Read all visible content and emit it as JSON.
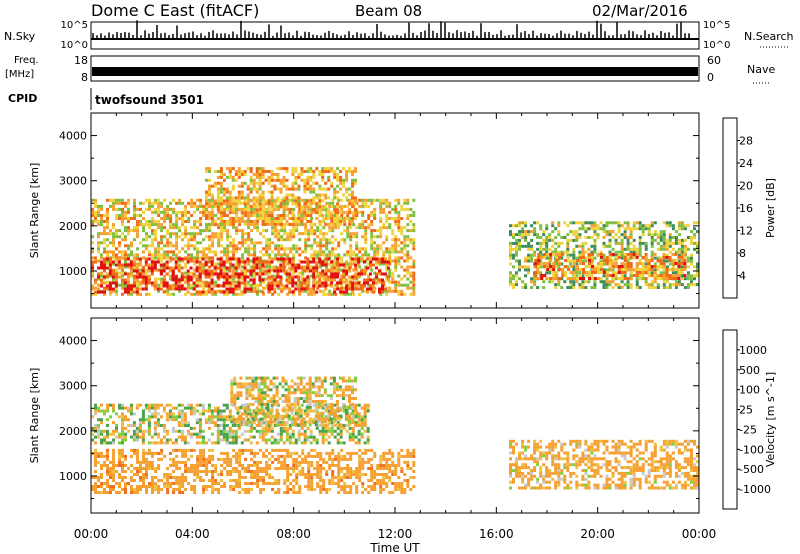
{
  "header": {
    "station": "Dome C East (fitACF)",
    "beam": "Beam 08",
    "date": "02/Mar/2016"
  },
  "top_panels": {
    "nsky_label": "N.Sky",
    "nsky_ticks": [
      "10^5",
      "10^0"
    ],
    "nsearch_label": "N.Search",
    "nsearch_ticks": [
      "10^5",
      "10^0"
    ],
    "freq_label_1": "Freq.",
    "freq_label_2": "[MHz]",
    "freq_ticks": [
      "18",
      "8"
    ],
    "nave_label": "Nave",
    "nave_ticks": [
      "60",
      "0"
    ],
    "cpid_label": "CPID",
    "cpid_value": "twofsound 3501"
  },
  "x_axis": {
    "title": "Time UT",
    "ticks": [
      "00:00",
      "04:00",
      "08:00",
      "12:00",
      "16:00",
      "20:00",
      "00:00"
    ]
  },
  "chart_data": [
    {
      "type": "heatmap",
      "title": "",
      "xlabel": "Time UT",
      "ylabel": "Slant Range [km]",
      "x_range_hours": [
        0,
        24
      ],
      "ylim": [
        180,
        4500
      ],
      "y_ticks": [
        1000,
        2000,
        3000,
        4000
      ],
      "colorbar": {
        "label": "Power [dB]",
        "ticks": [
          "4",
          "8",
          "12",
          "16",
          "20",
          "24",
          "28"
        ],
        "range": [
          0,
          30
        ],
        "colors": [
          "#1414e6",
          "#2a55a8",
          "#3d8c5a",
          "#7fbf3f",
          "#f0d23a",
          "#f5a030",
          "#f06a18",
          "#e01010"
        ]
      },
      "regions": [
        {
          "t0": 0.0,
          "t1": 12.8,
          "r0": 450,
          "r1": 2600,
          "value": 18
        },
        {
          "t0": 0.0,
          "t1": 11.8,
          "r0": 500,
          "r1": 1300,
          "value": 26
        },
        {
          "t0": 4.5,
          "t1": 10.5,
          "r0": 2000,
          "r1": 3300,
          "value": 20
        },
        {
          "t0": 16.5,
          "t1": 24.0,
          "r0": 600,
          "r1": 2100,
          "value": 14
        },
        {
          "t0": 17.5,
          "t1": 23.5,
          "r0": 800,
          "r1": 1400,
          "value": 22
        }
      ]
    },
    {
      "type": "heatmap",
      "title": "",
      "xlabel": "Time UT",
      "ylabel": "Slant Range [km]",
      "x_range_hours": [
        0,
        24
      ],
      "ylim": [
        180,
        4500
      ],
      "y_ticks": [
        1000,
        2000,
        3000,
        4000
      ],
      "colorbar": {
        "label": "Velocity [m s^-1]",
        "ticks": [
          "1000",
          "500",
          "100",
          "25",
          "-25",
          "-100",
          "-500",
          "-1000"
        ],
        "colors": [
          "#1a3aa8",
          "#2a7a5a",
          "#4aa24a",
          "#7fcf3f",
          "#c8c8c8",
          "#f0c040",
          "#f5a030",
          "#f07020",
          "#e01010"
        ]
      },
      "regions": [
        {
          "t0": 0.0,
          "t1": 11.0,
          "r0": 1700,
          "r1": 2600,
          "value": 0
        },
        {
          "t0": 0.0,
          "t1": 12.8,
          "r0": 600,
          "r1": 1600,
          "value": -300
        },
        {
          "t0": 5.5,
          "t1": 10.5,
          "r0": 2100,
          "r1": 3200,
          "value": -100
        },
        {
          "t0": 16.5,
          "t1": 24.0,
          "r0": 700,
          "r1": 1800,
          "value": -200
        }
      ]
    }
  ]
}
